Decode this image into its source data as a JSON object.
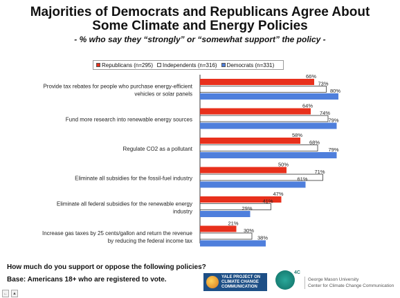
{
  "title_line1": "Majorities of Democrats and Republicans Agree About",
  "title_line2": "Some Climate and Energy Policies",
  "subtitle": "- % who say they “strongly” or “somewhat support” the policy -",
  "question": "How much do you support or oppose the following policies?",
  "base": "Base: Americans 18+ who are registered to vote.",
  "logos": {
    "ccc_line1": "YALE PROJECT ON",
    "ccc_line2": "CLIMATE CHANGE",
    "ccc_line3": "COMMUNICATION",
    "fourc": "4C",
    "gmu_line1": "George Mason University",
    "gmu_line2": "Center for Climate Change Communication"
  },
  "corner_buttons": [
    "←",
    "▲"
  ],
  "chart_data": {
    "type": "bar",
    "orientation": "horizontal",
    "categories": [
      [
        "Provide tax rebates for people who purchase energy-efficient",
        "vehicles or solar panels"
      ],
      [
        "Fund more research into renewable energy sources"
      ],
      [
        "Regulate CO2 as a pollutant"
      ],
      [
        "Eliminate all subsidies for the fossil-fuel industry"
      ],
      [
        "Eliminate all federal subsidies for the renewable energy",
        "industry"
      ],
      [
        "Increase gas taxes by 25 cents/gallon and return the revenue",
        "by reducing the federal income tax"
      ]
    ],
    "series": [
      {
        "name": "Republicans (n=295)",
        "color": "#e8301c",
        "values": [
          66,
          64,
          58,
          50,
          47,
          21
        ]
      },
      {
        "name": "Independents (n=316)",
        "color": "#ffffff",
        "values": [
          73,
          74,
          68,
          71,
          41,
          30
        ]
      },
      {
        "name": "Democrats (n=331)",
        "color": "#4f7fdc",
        "values": [
          80,
          79,
          79,
          61,
          29,
          38
        ]
      }
    ],
    "value_suffix": "%",
    "xlim": [
      0,
      100
    ],
    "legend_position": "top",
    "grid": false
  }
}
